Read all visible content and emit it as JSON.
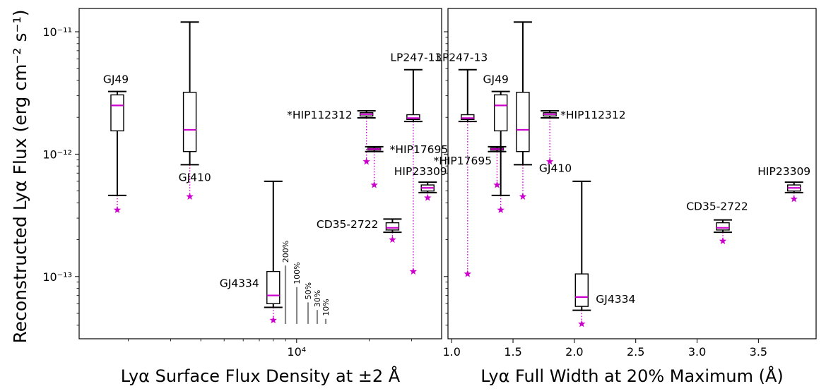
{
  "figure": {
    "ylabel": "Reconstructed Lyα Flux (erg cm⁻² s⁻¹)"
  },
  "colors": {
    "median": "#cc00cc",
    "star": "#cc00cc",
    "box": "#000000",
    "scale_bar": "#888888"
  },
  "chart_data": [
    {
      "type": "box",
      "xlabel": "Lyα Surface Flux Density at ±2 Å",
      "ylabel": "Reconstructed Lyα Flux (erg cm⁻² s⁻¹)",
      "xscale": "log",
      "yscale": "log",
      "xlim": [
        1250,
        40000
      ],
      "ylim": [
        3.1e-14,
        1.55e-11
      ],
      "xticks": [
        {
          "value": 10000,
          "label": "10⁴"
        }
      ],
      "yticks": [
        {
          "value": 1e-13,
          "label": "10⁻¹³"
        },
        {
          "value": 1e-12,
          "label": "10⁻¹²"
        },
        {
          "value": 1e-11,
          "label": "10⁻¹¹"
        }
      ],
      "grid": false,
      "legend": "none",
      "series": [
        {
          "label": "GJ49",
          "x": 1800,
          "whisker_low": 4.6e-13,
          "q1": 1.55e-12,
          "median": 2.5e-12,
          "q3": 3.05e-12,
          "whisker_high": 3.25e-12,
          "star": 3.5e-13
        },
        {
          "label": "GJ410",
          "x": 3600,
          "whisker_low": 8.2e-13,
          "q1": 1.05e-12,
          "median": 1.58e-12,
          "q3": 3.2e-12,
          "whisker_high": 1.2e-11,
          "star": 4.5e-13
        },
        {
          "label": "GJ4334",
          "x": 8000,
          "whisker_low": 5.6e-14,
          "q1": 6e-14,
          "median": 7e-14,
          "q3": 1.1e-13,
          "whisker_high": 6e-13,
          "star": 4.4e-14
        },
        {
          "label": "*HIP112312",
          "x": 19500,
          "whisker_low": 1.98e-12,
          "q1": 2.05e-12,
          "median": 2.12e-12,
          "q3": 2.18e-12,
          "whisker_high": 2.26e-12,
          "star": 8.7e-13
        },
        {
          "label": "*HIP17695",
          "x": 21000,
          "whisker_low": 1.05e-12,
          "q1": 1.08e-12,
          "median": 1.1e-12,
          "q3": 1.12e-12,
          "whisker_high": 1.15e-12,
          "star": 5.6e-13
        },
        {
          "label": "CD35-2722",
          "x": 25000,
          "whisker_low": 2.3e-13,
          "q1": 2.4e-13,
          "median": 2.5e-13,
          "q3": 2.75e-13,
          "whisker_high": 2.95e-13,
          "star": 2e-13
        },
        {
          "label": "LP247-13",
          "x": 30500,
          "whisker_low": 1.85e-12,
          "q1": 1.92e-12,
          "median": 1.97e-12,
          "q3": 2.1e-12,
          "whisker_high": 4.9e-12,
          "star": 1.1e-13
        },
        {
          "label": "HIP23309",
          "x": 35000,
          "whisker_low": 4.85e-13,
          "q1": 5e-13,
          "median": 5.3e-13,
          "q3": 5.6e-13,
          "whisker_high": 5.9e-13,
          "star": 4.4e-13
        }
      ],
      "scale_bars": [
        {
          "label": "200%",
          "factor": 3.0
        },
        {
          "label": "100%",
          "factor": 2.0
        },
        {
          "label": "50%",
          "factor": 1.5
        },
        {
          "label": "30%",
          "factor": 1.3
        },
        {
          "label": "10%",
          "factor": 1.1
        }
      ]
    },
    {
      "type": "box",
      "xlabel": "Lyα Full Width at 20% Maximum (Å)",
      "yscale": "log",
      "xlim": [
        0.97,
        3.97
      ],
      "ylim": [
        3.1e-14,
        1.55e-11
      ],
      "xticks": [
        {
          "value": 1.0,
          "label": "1.0"
        },
        {
          "value": 1.5,
          "label": "1.5"
        },
        {
          "value": 2.0,
          "label": "2.0"
        },
        {
          "value": 2.5,
          "label": "2.5"
        },
        {
          "value": 3.0,
          "label": "3.0"
        },
        {
          "value": 3.5,
          "label": "3.5"
        }
      ],
      "grid": false,
      "legend": "none",
      "series": [
        {
          "label": "LP247-13",
          "x": 1.13,
          "whisker_low": 1.85e-12,
          "q1": 1.92e-12,
          "median": 1.97e-12,
          "q3": 2.1e-12,
          "whisker_high": 4.9e-12,
          "star": 1.05e-13
        },
        {
          "label": "*HIP17695",
          "x": 1.37,
          "whisker_low": 1.05e-12,
          "q1": 1.08e-12,
          "median": 1.1e-12,
          "q3": 1.12e-12,
          "whisker_high": 1.15e-12,
          "star": 5.6e-13
        },
        {
          "label": "GJ49",
          "x": 1.4,
          "whisker_low": 4.6e-13,
          "q1": 1.55e-12,
          "median": 2.5e-12,
          "q3": 3.05e-12,
          "whisker_high": 3.25e-12,
          "star": 3.5e-13
        },
        {
          "label": "GJ410",
          "x": 1.58,
          "whisker_low": 8.2e-13,
          "q1": 1.05e-12,
          "median": 1.58e-12,
          "q3": 3.2e-12,
          "whisker_high": 1.2e-11,
          "star": 4.5e-13
        },
        {
          "label": "*HIP112312",
          "x": 1.8,
          "whisker_low": 1.98e-12,
          "q1": 2.05e-12,
          "median": 2.12e-12,
          "q3": 2.18e-12,
          "whisker_high": 2.26e-12,
          "star": 8.7e-13
        },
        {
          "label": "GJ4334",
          "x": 2.06,
          "whisker_low": 5.3e-14,
          "q1": 5.7e-14,
          "median": 6.8e-14,
          "q3": 1.05e-13,
          "whisker_high": 6e-13,
          "star": 4.1e-14
        },
        {
          "label": "CD35-2722",
          "x": 3.21,
          "whisker_low": 2.3e-13,
          "q1": 2.4e-13,
          "median": 2.5e-13,
          "q3": 2.75e-13,
          "whisker_high": 2.9e-13,
          "star": 1.95e-13
        },
        {
          "label": "HIP23309",
          "x": 3.79,
          "whisker_low": 4.85e-13,
          "q1": 5e-13,
          "median": 5.3e-13,
          "q3": 5.6e-13,
          "whisker_high": 5.9e-13,
          "star": 4.3e-13
        }
      ]
    }
  ]
}
